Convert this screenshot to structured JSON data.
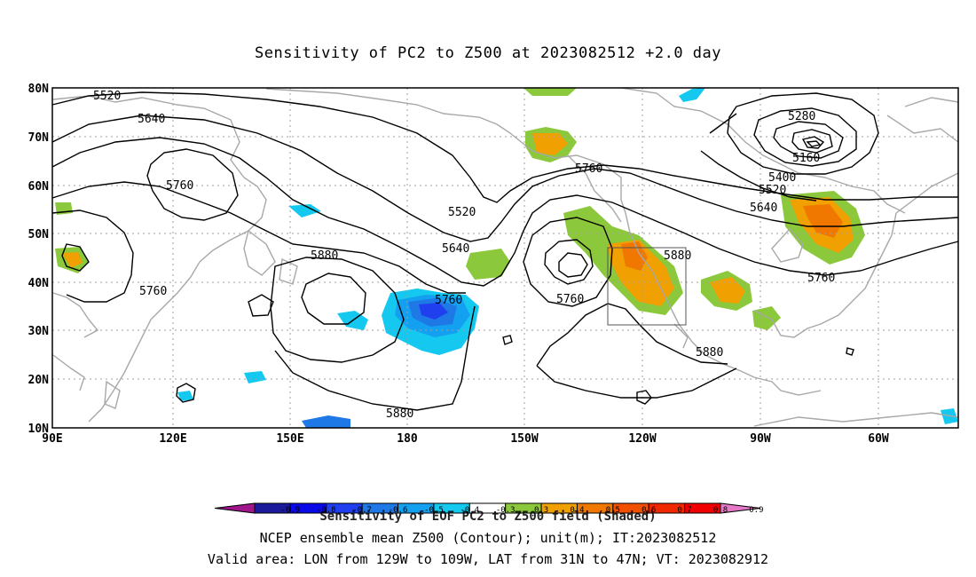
{
  "title": "Sensitivity of PC2 to Z500 at 2023082512 +2.0 day",
  "lat_labels": [
    "80N",
    "70N",
    "60N",
    "50N",
    "40N",
    "30N",
    "20N",
    "10N"
  ],
  "lon_labels": [
    "90E",
    "120E",
    "150E",
    "180",
    "150W",
    "120W",
    "90W",
    "60W"
  ],
  "contour_labels": [
    "5520",
    "5640",
    "5760",
    "5520",
    "5640",
    "5880",
    "5760",
    "5760",
    "5280",
    "5160",
    "5400",
    "5520",
    "5640",
    "5760",
    "5760",
    "5880",
    "5880",
    "5880"
  ],
  "colorbar": {
    "ticks": [
      "-0.9",
      "-0.8",
      "-0.7",
      "-0.6",
      "-0.5",
      "-0.4",
      "-0.3",
      "0.3",
      "0.4",
      "0.5",
      "0.6",
      "0.7",
      "0.8",
      "0.9"
    ],
    "colors": [
      "#a0148c",
      "#1a1a9a",
      "#0a0ae6",
      "#2040f0",
      "#1e78e6",
      "#14a0f0",
      "#14c8f0",
      "#ffffff",
      "#8cc83c",
      "#f0a000",
      "#f07800",
      "#f05000",
      "#f02800",
      "#f00000",
      "#e678c8"
    ],
    "overlay_label": "Sensitivity of EOF PC2 to Z500 field (Shaded)"
  },
  "footer": {
    "line1": "NCEP ensemble mean Z500 (Contour); unit(m); IT:2023082512",
    "line2": "Valid area: LON from 129W to 109W, LAT from 31N to 47N; VT: 2023082912"
  }
}
